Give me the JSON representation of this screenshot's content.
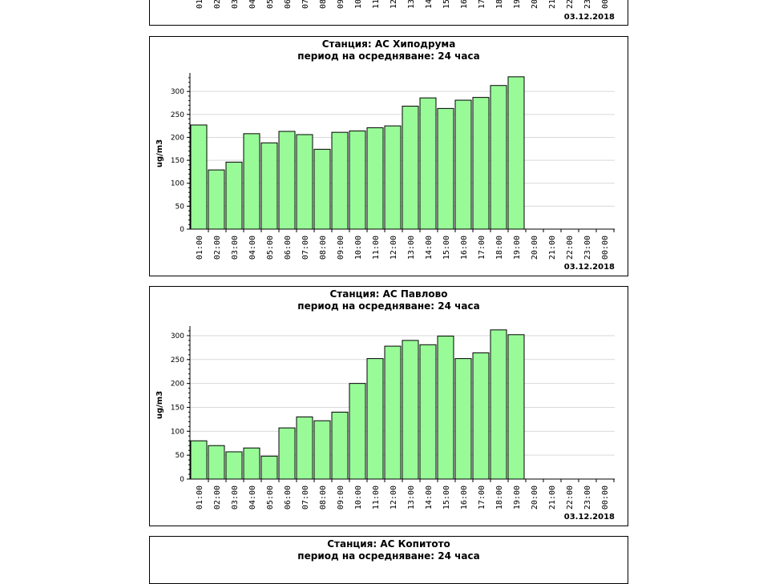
{
  "colors": {
    "bar_fill": "#98fb98",
    "bar_stroke": "#000000",
    "grid": "#d9d9d9",
    "border": "#000000"
  },
  "top_panel": {
    "tick_labels": [
      "01",
      "02",
      "03",
      "04",
      "05",
      "06",
      "07",
      "08",
      "09",
      "10",
      "11",
      "12",
      "13",
      "14",
      "15",
      "16",
      "17",
      "18",
      "19",
      "20",
      "21",
      "22",
      "23",
      "00"
    ],
    "date": "03.12.2018"
  },
  "chart_data": [
    {
      "type": "bar",
      "title": "Станция: АС Хиподрума",
      "subtitle": "период на осредняване: 24 часа",
      "ylabel": "ug/m3",
      "date": "03.12.2018",
      "ylim": [
        0,
        330
      ],
      "yticks": [
        0,
        50,
        100,
        150,
        200,
        250,
        300
      ],
      "grid": true,
      "categories": [
        "01:00",
        "02:00",
        "03:00",
        "04:00",
        "05:00",
        "06:00",
        "07:00",
        "08:00",
        "09:00",
        "10:00",
        "11:00",
        "12:00",
        "13:00",
        "14:00",
        "15:00",
        "16:00",
        "17:00",
        "18:00",
        "19:00",
        "20:00",
        "21:00",
        "22:00",
        "23:00",
        "00:00"
      ],
      "values": [
        227,
        129,
        146,
        208,
        188,
        213,
        206,
        174,
        211,
        214,
        221,
        225,
        268,
        286,
        263,
        281,
        287,
        313,
        332,
        null,
        null,
        null,
        null,
        null
      ]
    },
    {
      "type": "bar",
      "title": "Станция: АС Павлово",
      "subtitle": "период на осредняване: 24 часа",
      "ylabel": "ug/m3",
      "date": "03.12.2018",
      "ylim": [
        0,
        310
      ],
      "yticks": [
        0,
        50,
        100,
        150,
        200,
        250,
        300
      ],
      "grid": true,
      "categories": [
        "01:00",
        "02:00",
        "03:00",
        "04:00",
        "05:00",
        "06:00",
        "07:00",
        "08:00",
        "09:00",
        "10:00",
        "11:00",
        "12:00",
        "13:00",
        "14:00",
        "15:00",
        "16:00",
        "17:00",
        "18:00",
        "19:00",
        "20:00",
        "21:00",
        "22:00",
        "23:00",
        "00:00"
      ],
      "values": [
        80,
        70,
        57,
        65,
        48,
        107,
        130,
        122,
        140,
        200,
        252,
        278,
        290,
        281,
        299,
        252,
        264,
        312,
        302,
        null,
        null,
        null,
        null,
        null
      ]
    },
    {
      "type": "bar",
      "title": "Станция: АС Копитото",
      "subtitle": "период на осредняване: 24 часа"
    }
  ]
}
